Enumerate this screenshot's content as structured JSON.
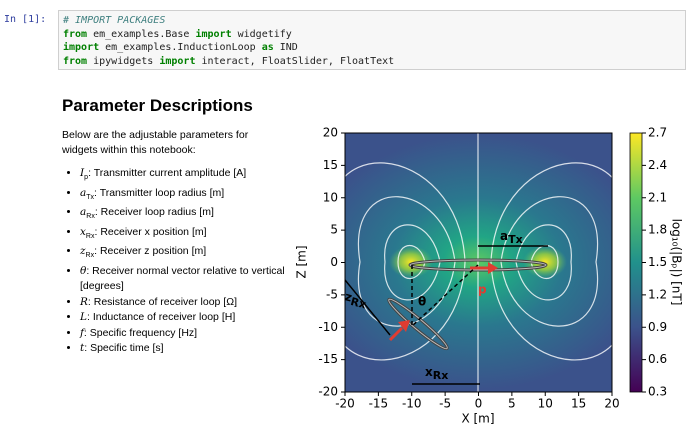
{
  "cell": {
    "prompt": "In [1]:",
    "code": [
      [
        "# IMPORT PACKAGES"
      ],
      [
        "from",
        " em_examples.Base ",
        "import",
        " widgetify"
      ],
      [
        "import",
        " em_examples.InductionLoop ",
        "as",
        " IND"
      ],
      [
        "from",
        " ipywidgets ",
        "import",
        " interact, FloatSlider, FloatText"
      ]
    ]
  },
  "markdown": {
    "title": "Parameter Descriptions",
    "intro": "Below are the adjustable parameters for widgets within this notebook:",
    "items": [
      {
        "symbol": "I",
        "sub": "p",
        "text": ": Transmitter current amplitude [A]"
      },
      {
        "symbol": "a",
        "sub": "Tx",
        "text": ": Transmitter loop radius [m]"
      },
      {
        "symbol": "a",
        "sub": "Rx",
        "text": ": Receiver loop radius [m]"
      },
      {
        "symbol": "x",
        "sub": "Rx",
        "text": ": Receiver x position [m]"
      },
      {
        "symbol": "z",
        "sub": "Rx",
        "text": ": Receiver z position [m]"
      },
      {
        "symbol": "θ",
        "sub": "",
        "text": ": Receiver normal vector relative to vertical [degrees]"
      },
      {
        "symbol": "R",
        "sub": "",
        "text": ": Resistance of receiver loop [Ω]"
      },
      {
        "symbol": "L",
        "sub": "",
        "text": ": Inductance of receiver loop [H]"
      },
      {
        "symbol": "f",
        "sub": "",
        "text": ": Specific frequency [Hz]"
      },
      {
        "symbol": "t",
        "sub": "",
        "text": ": Specific time [s]"
      }
    ]
  },
  "figure": {
    "xlabel": "X [m]",
    "ylabel": "Z [m]",
    "xlim": [
      -20,
      20
    ],
    "ylim": [
      -20,
      20
    ],
    "xticks": [
      -20,
      -15,
      -10,
      -5,
      0,
      5,
      10,
      15,
      20
    ],
    "yticks": [
      -20,
      -15,
      -10,
      -5,
      0,
      5,
      10,
      15,
      20
    ],
    "colorbar_lim": [
      0.3,
      2.7
    ],
    "colorbar_ticks": [
      0.3,
      0.6,
      0.9,
      1.2,
      1.5,
      1.8,
      2.1,
      2.4,
      2.7
    ],
    "colorbar_label": "log₁₀(|Bₚ|) [nT]",
    "annotations": [
      {
        "symbol": "a",
        "sub": "Tx"
      },
      {
        "symbol": "z",
        "sub": "Rx"
      },
      {
        "symbol": "x",
        "sub": "Rx"
      },
      {
        "symbol": "θ"
      },
      {
        "symbol": "p"
      }
    ]
  }
}
